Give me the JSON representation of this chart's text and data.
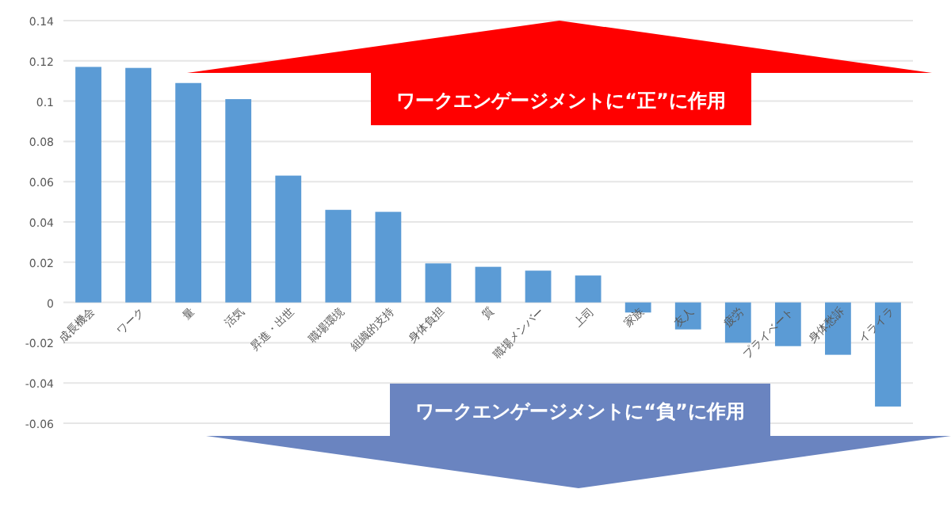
{
  "chart_data": {
    "type": "bar",
    "categories": [
      "成長機会",
      "ワーク",
      "量",
      "活気",
      "昇進・出世",
      "職場環境",
      "組織的支持",
      "身体負担",
      "質",
      "職場メンバー",
      "上司",
      "家族",
      "友人",
      "疲労",
      "プライベート",
      "身体愁訴",
      "イライラ"
    ],
    "series": [
      {
        "color": "#5b9bd5",
        "values": [
          0.117,
          0.1165,
          0.109,
          0.101,
          0.063,
          0.046,
          0.045,
          0.0194,
          0.0177,
          0.0158,
          0.0134,
          -0.005,
          -0.0134,
          -0.02,
          -0.0217,
          -0.026,
          -0.0517
        ]
      }
    ],
    "ylim": [
      -0.06,
      0.14
    ],
    "yticks": [
      -0.06,
      -0.04,
      -0.02,
      0,
      0.02,
      0.04,
      0.06,
      0.08,
      0.1,
      0.12,
      0.14
    ],
    "grid": "y",
    "annotations": [
      "ワークエンゲージメントに“正”に作用",
      "ワークエンゲージメントに“負”に作用"
    ]
  }
}
